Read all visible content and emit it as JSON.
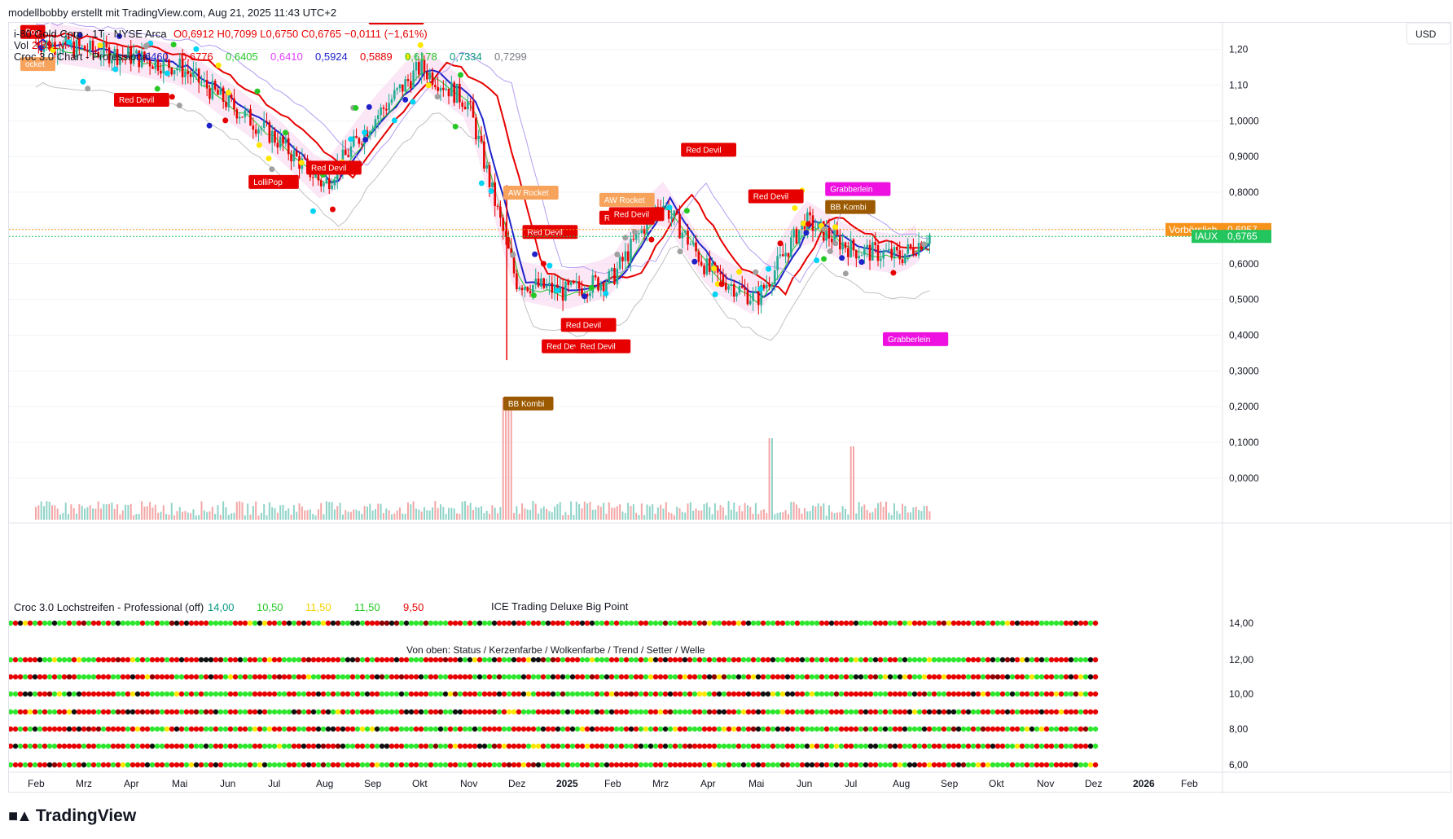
{
  "header": {
    "attribution": "modellbobby erstellt mit TradingView.com, Aug 21, 2025 11:43 UTC+2"
  },
  "currency": "USD",
  "legend": {
    "symbol": "i-80 Gold Corp · 1T · NYSE Arca",
    "ohlc": "O0,6912 H0,7099 L0,6750 C0,6765 −0,0111 (−1,61%)",
    "vol_label": "Vol",
    "vol_value": "2,891M",
    "croc_label": "Croc 3.0 Chart - Professional",
    "croc_values": [
      {
        "text": "0,6460",
        "color": "#1e22c9"
      },
      {
        "text": "0,6776",
        "color": "#e60000"
      },
      {
        "text": "0,6405",
        "color": "#26c826"
      },
      {
        "text": "0,6410",
        "color": "#e040fb"
      },
      {
        "text": "0,5924",
        "color": "#1e22c9"
      },
      {
        "text": "0,5889",
        "color": "#e60000"
      },
      {
        "text": "0,6178",
        "color": "#26c826"
      },
      {
        "text": "0,7334",
        "color": "#089981"
      },
      {
        "text": "0,7299",
        "color": "#787b86"
      }
    ]
  },
  "lower_panel": {
    "title": "Croc 3.0 Lochstreifen - Professional (off)",
    "values": [
      {
        "text": "14,00",
        "color": "#089981"
      },
      {
        "text": "10,50",
        "color": "#26c826"
      },
      {
        "text": "11,50",
        "color": "#f5d200"
      },
      {
        "text": "11,50",
        "color": "#26c826"
      },
      {
        "text": "9,50",
        "color": "#e60000"
      }
    ],
    "overlay_label": "ICE Trading Deluxe Big Point",
    "subtitle": "Von oben: Status / Kerzenfarbe / Wolkenfarbe / Trend / Setter / Welle",
    "y_ticks": [
      "14,00",
      "12,00",
      "10,00",
      "8,00",
      "6,00"
    ]
  },
  "price_tags": [
    {
      "label": "Vorbörslich",
      "value": "0,6957",
      "color": "#f7931a"
    },
    {
      "label": "IAUX",
      "value": "0,6765",
      "color": "#22c55e"
    }
  ],
  "signals": [
    {
      "text": "Red Devil",
      "color": "#e60000"
    },
    {
      "text": "Red Devil",
      "color": "#e60000"
    },
    {
      "text": "Red Devil",
      "color": "#e60000"
    },
    {
      "text": "LolliPop",
      "color": "#e60000"
    },
    {
      "text": "AW Rocket",
      "color": "#f7a35c"
    },
    {
      "text": "Red Devil",
      "color": "#e60000"
    },
    {
      "text": "AW Rocket",
      "color": "#f7a35c"
    },
    {
      "text": "Red Devil",
      "color": "#e60000"
    },
    {
      "text": "Red Devil",
      "color": "#e60000"
    },
    {
      "text": "Red Devil",
      "color": "#e60000"
    },
    {
      "text": "Red Devil",
      "color": "#e60000"
    },
    {
      "text": "Red Devil",
      "color": "#e60000"
    },
    {
      "text": "Red Devil",
      "color": "#e60000"
    },
    {
      "text": "Red Devil",
      "color": "#e60000"
    },
    {
      "text": "BB Kombi",
      "color": "#9c5a00"
    },
    {
      "text": "Grabberlein",
      "color": "#ee10e0"
    },
    {
      "text": "BB Kombi",
      "color": "#9c5a00"
    },
    {
      "text": "Grabberlein",
      "color": "#ee10e0"
    },
    {
      "text": "Pop",
      "color": "#e60000"
    },
    {
      "text": "ocket",
      "color": "#f7a35c"
    }
  ],
  "chart_data": {
    "type": "candlestick",
    "ylim": [
      -0.08,
      1.32
    ],
    "y_ticks": [
      "1,20",
      "1,10",
      "1,0000",
      "0,9000",
      "0,8000",
      "0,7000",
      "0,6000",
      "0,5000",
      "0,4000",
      "0,3000",
      "0,2000",
      "0,1000",
      "0,0000"
    ],
    "x_ticks": [
      "Feb",
      "Mrz",
      "Apr",
      "Mai",
      "Jun",
      "Jul",
      "Aug",
      "Sep",
      "Okt",
      "Nov",
      "Dez",
      "2025",
      "Feb",
      "Mrz",
      "Apr",
      "Mai",
      "Jun",
      "Jul",
      "Aug",
      "Sep",
      "Okt",
      "Nov",
      "Dez",
      "2026",
      "Feb"
    ],
    "series": [
      {
        "name": "IAUX",
        "x_month": [
          0,
          1,
          2,
          3,
          4,
          5,
          6,
          7,
          8,
          9,
          10,
          11,
          12,
          13,
          14,
          15,
          16,
          17,
          18,
          18.6
        ],
        "values": [
          1.22,
          1.2,
          1.18,
          1.15,
          1.05,
          0.95,
          0.82,
          1.0,
          1.15,
          1.05,
          0.55,
          0.52,
          0.56,
          0.78,
          0.58,
          0.5,
          0.72,
          0.64,
          0.62,
          0.68
        ]
      }
    ],
    "last_close": 0.6765,
    "premarket": 0.6957
  }
}
